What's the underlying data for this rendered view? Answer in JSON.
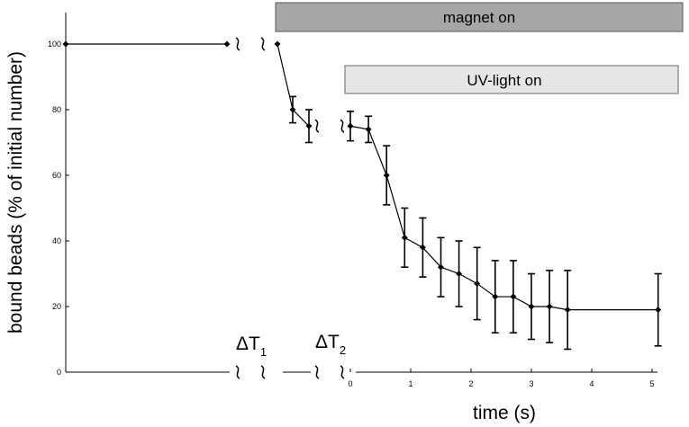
{
  "chart_data": {
    "type": "line",
    "xlabel": "time (s)",
    "ylabel": "bound beads (% of initial number)",
    "ylim": [
      0,
      100
    ],
    "yticks": [
      0,
      20,
      40,
      60,
      80,
      100
    ],
    "xlim": [
      0,
      5
    ],
    "xticks": [
      0,
      1,
      2,
      3,
      4,
      5
    ],
    "grid": false,
    "segments": [
      {
        "name": "",
        "points": [
          {
            "y": 100
          },
          {
            "y": 100
          }
        ]
      },
      {
        "name": "",
        "points": [
          {
            "y": 100
          },
          {
            "y": 80,
            "err": 4
          },
          {
            "y": 75,
            "err": 5
          }
        ]
      },
      {
        "name": "",
        "points": [
          {
            "x": 0.0,
            "y": 75,
            "err": 4.5
          },
          {
            "x": 0.3,
            "y": 74,
            "err": 4
          },
          {
            "x": 0.6,
            "y": 60,
            "err": 9
          },
          {
            "x": 0.9,
            "y": 41,
            "err": 9
          },
          {
            "x": 1.2,
            "y": 38,
            "err": 9
          },
          {
            "x": 1.5,
            "y": 32,
            "err": 9
          },
          {
            "x": 1.8,
            "y": 30,
            "err": 10
          },
          {
            "x": 2.1,
            "y": 27,
            "err": 11
          },
          {
            "x": 2.4,
            "y": 23,
            "err": 11
          },
          {
            "x": 2.7,
            "y": 23,
            "err": 11
          },
          {
            "x": 3.0,
            "y": 20,
            "err": 10
          },
          {
            "x": 3.3,
            "y": 20,
            "err": 11
          },
          {
            "x": 3.6,
            "y": 19,
            "err": 12
          },
          {
            "x": 5.1,
            "y": 19,
            "err": 11
          }
        ]
      }
    ],
    "annotations": {
      "magnet_label": "magnet on",
      "uv_label": "UV-light on",
      "delta1": {
        "symbol": "ΔT",
        "sub": "1"
      },
      "delta2": {
        "symbol": "ΔT",
        "sub": "2"
      }
    },
    "colors": {
      "magnet_bar": "#a6a6a6",
      "uv_bar": "#e6e6e6",
      "line": "#000000"
    }
  }
}
